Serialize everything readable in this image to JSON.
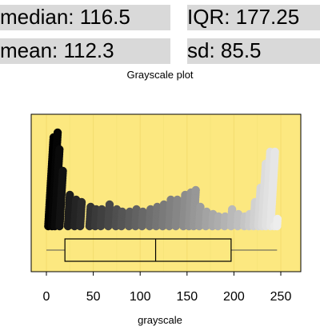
{
  "stats": {
    "median": "median: 116.5",
    "iqr": "IQR: 177.25",
    "mean": "mean: 112.3",
    "sd": "sd: 85.5"
  },
  "chart_data": {
    "type": "dotplot+boxplot",
    "title": "Grayscale plot",
    "xlabel": "grayscale",
    "xlim": [
      -10,
      265
    ],
    "x_ticks": [
      0,
      50,
      100,
      150,
      200,
      250
    ],
    "grid": true,
    "background_color": "#fce880",
    "box": {
      "whisker_low": 0,
      "q1": 19.75,
      "median": 116.5,
      "q3": 197,
      "whisker_high": 246
    },
    "columns": [
      {
        "x": 2,
        "count": 38,
        "shade": "#000000"
      },
      {
        "x": 6,
        "count": 40,
        "shade": "#050505"
      },
      {
        "x": 9,
        "count": 33,
        "shade": "#0a0a0a"
      },
      {
        "x": 14,
        "count": 24,
        "shade": "#121212"
      },
      {
        "x": 23,
        "count": 14,
        "shade": "#1c1c1c"
      },
      {
        "x": 30,
        "count": 12,
        "shade": "#242424"
      },
      {
        "x": 36,
        "count": 11,
        "shade": "#2a2a2a"
      },
      {
        "x": 46,
        "count": 9,
        "shade": "#333333"
      },
      {
        "x": 52,
        "count": 8,
        "shade": "#3a3a3a"
      },
      {
        "x": 58,
        "count": 8,
        "shade": "#404040"
      },
      {
        "x": 66,
        "count": 10,
        "shade": "#484848"
      },
      {
        "x": 74,
        "count": 8,
        "shade": "#4f4f4f"
      },
      {
        "x": 80,
        "count": 7,
        "shade": "#555555"
      },
      {
        "x": 88,
        "count": 7,
        "shade": "#5c5c5c"
      },
      {
        "x": 95,
        "count": 8,
        "shade": "#626262"
      },
      {
        "x": 102,
        "count": 7,
        "shade": "#686868"
      },
      {
        "x": 110,
        "count": 8,
        "shade": "#6f6f6f"
      },
      {
        "x": 117,
        "count": 9,
        "shade": "#757575"
      },
      {
        "x": 124,
        "count": 10,
        "shade": "#7a7a7a"
      },
      {
        "x": 131,
        "count": 12,
        "shade": "#808080"
      },
      {
        "x": 138,
        "count": 12,
        "shade": "#868686"
      },
      {
        "x": 146,
        "count": 14,
        "shade": "#8c8c8c"
      },
      {
        "x": 152,
        "count": 15,
        "shade": "#929292"
      },
      {
        "x": 157,
        "count": 16,
        "shade": "#979797"
      },
      {
        "x": 163,
        "count": 9,
        "shade": "#9c9c9c"
      },
      {
        "x": 170,
        "count": 7,
        "shade": "#a3a3a3"
      },
      {
        "x": 177,
        "count": 6,
        "shade": "#a8a8a8"
      },
      {
        "x": 183,
        "count": 5,
        "shade": "#adadad"
      },
      {
        "x": 190,
        "count": 5,
        "shade": "#b3b3b3"
      },
      {
        "x": 197,
        "count": 8,
        "shade": "#b9b9b9"
      },
      {
        "x": 204,
        "count": 6,
        "shade": "#bfbfbf"
      },
      {
        "x": 211,
        "count": 5,
        "shade": "#c5c5c5"
      },
      {
        "x": 216,
        "count": 6,
        "shade": "#cbcbcb"
      },
      {
        "x": 221,
        "count": 11,
        "shade": "#d1d1d1"
      },
      {
        "x": 226,
        "count": 17,
        "shade": "#d7d7d7"
      },
      {
        "x": 230,
        "count": 27,
        "shade": "#dcdcdc"
      },
      {
        "x": 234,
        "count": 32,
        "shade": "#e1e1e1"
      },
      {
        "x": 239,
        "count": 32,
        "shade": "#e6e6e6"
      },
      {
        "x": 243,
        "count": 1,
        "shade": "#eaeaea"
      },
      {
        "x": 246,
        "count": 4,
        "shade": "#ededed"
      }
    ]
  }
}
